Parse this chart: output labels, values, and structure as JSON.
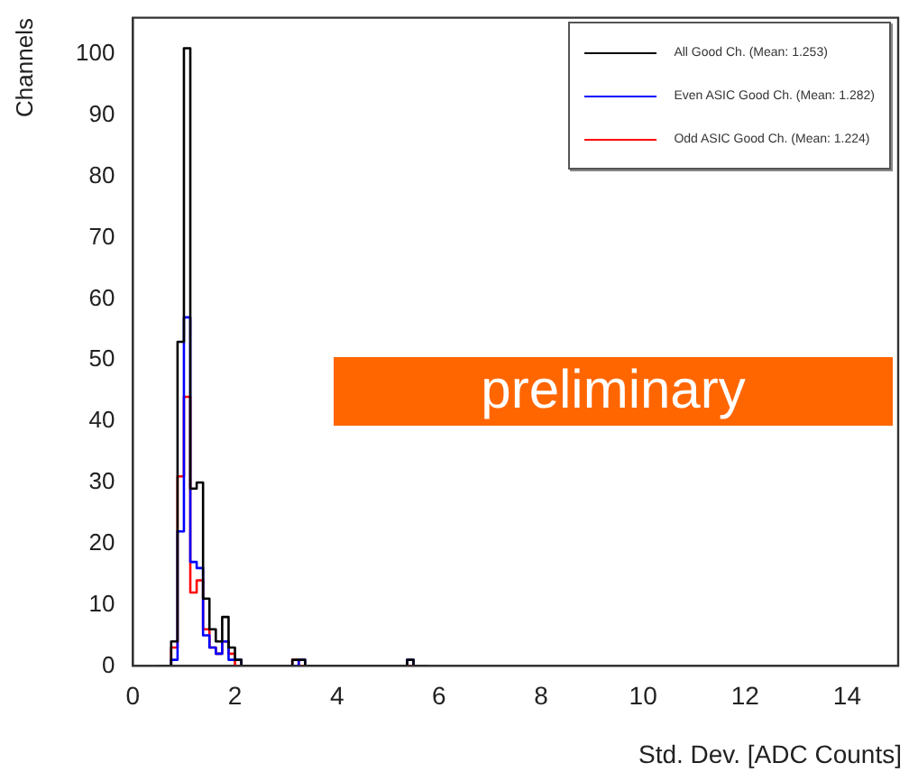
{
  "chart_data": {
    "type": "histogram",
    "xlabel": "Std. Dev. [ADC Counts]",
    "ylabel": "Channels",
    "bins": [
      0.5,
      0.625,
      0.75,
      0.875,
      1.0,
      1.125,
      1.25,
      1.375,
      1.5,
      1.625,
      1.75,
      1.875,
      2.0,
      2.125,
      2.25,
      2.375,
      2.5,
      2.625,
      2.75,
      2.875,
      3.0,
      3.125,
      3.25,
      3.375,
      3.5,
      3.625,
      3.75,
      3.875,
      4.0,
      4.125,
      4.25,
      4.375,
      4.5,
      4.625,
      4.75,
      4.875,
      5.0,
      5.125,
      5.25,
      5.375,
      5.5,
      5.625,
      5.75
    ],
    "series": [
      {
        "name": "All Good Ch. (Mean: 1.253)",
        "color": "#000000",
        "values": [
          0,
          0,
          4,
          53,
          101,
          29,
          30,
          11,
          6,
          4,
          8,
          3,
          1,
          0,
          0,
          0,
          0,
          0,
          0,
          0,
          0,
          1,
          1,
          0,
          0,
          0,
          0,
          0,
          0,
          0,
          0,
          0,
          0,
          0,
          0,
          0,
          0,
          0,
          0,
          1,
          0,
          0
        ]
      },
      {
        "name": "Even ASIC Good Ch. (Mean: 1.282)",
        "color": "#0000ff",
        "values": [
          0,
          0,
          1,
          22,
          57,
          17,
          16,
          5,
          3,
          2,
          4,
          1,
          1,
          0,
          0,
          0,
          0,
          0,
          0,
          0,
          0,
          0,
          1,
          0,
          0,
          0,
          0,
          0,
          0,
          0,
          0,
          0,
          0,
          0,
          0,
          0,
          0,
          0,
          0,
          1,
          0,
          0
        ]
      },
      {
        "name": "Odd ASIC Good Ch. (Mean: 1.224)",
        "color": "#ff0000",
        "values": [
          0,
          0,
          3,
          31,
          44,
          12,
          14,
          6,
          3,
          2,
          4,
          2,
          0,
          0,
          0,
          0,
          0,
          0,
          0,
          0,
          0,
          1,
          0,
          0,
          0,
          0,
          0,
          0,
          0,
          0,
          0,
          0,
          0,
          0,
          0,
          0,
          0,
          0,
          0,
          0,
          0,
          0
        ]
      }
    ],
    "xlim": [
      0,
      15
    ],
    "xticks": [
      0,
      2,
      4,
      6,
      8,
      10,
      12,
      14
    ],
    "ylim": [
      0,
      106
    ],
    "yticks": [
      0,
      10,
      20,
      30,
      40,
      50,
      60,
      70,
      80,
      90,
      100
    ],
    "grid": false,
    "legend": "top right",
    "annotations": [
      "preliminary"
    ]
  }
}
